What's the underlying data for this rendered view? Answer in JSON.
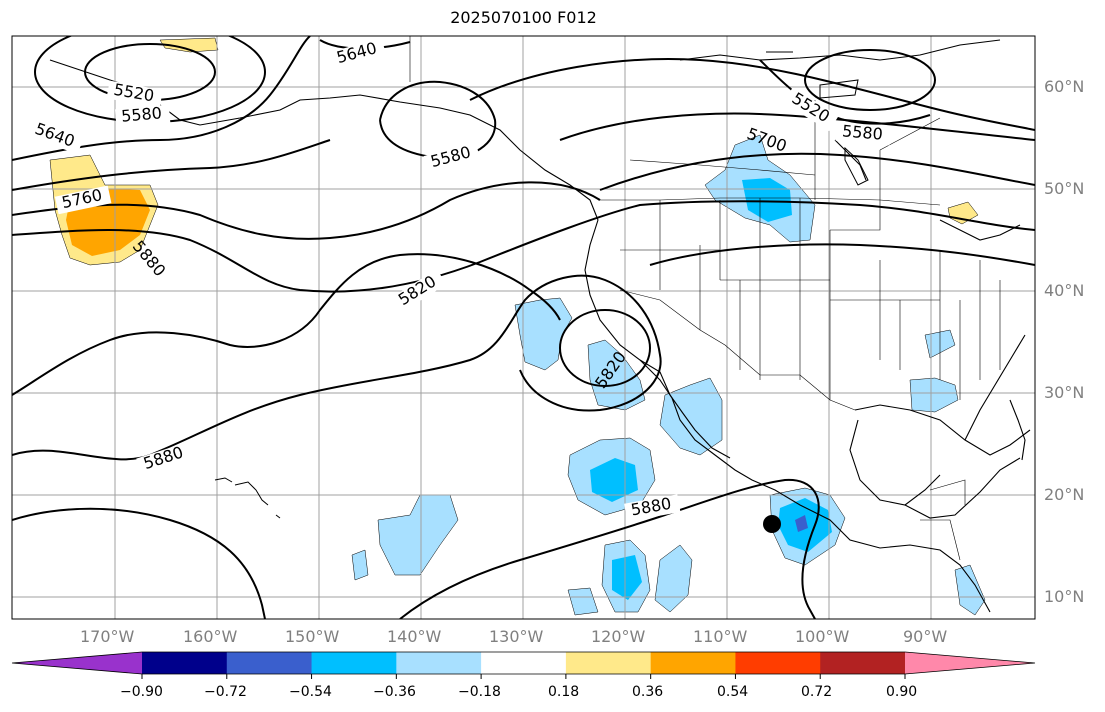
{
  "title": "2025070100 F012",
  "map": {
    "lon_ticks": [
      "170°W",
      "160°W",
      "150°W",
      "140°W",
      "130°W",
      "120°W",
      "110°W",
      "100°W",
      "90°W"
    ],
    "lat_ticks": [
      "60°N",
      "50°N",
      "40°N",
      "30°N",
      "20°N",
      "10°N"
    ],
    "contour_labels": [
      "5640",
      "5520",
      "5580",
      "5640",
      "5760",
      "5880",
      "5580",
      "5820",
      "5820",
      "5880",
      "5880",
      "5520",
      "5580",
      "5700"
    ],
    "marker": {
      "type": "filled-circle",
      "lon": "-105.3",
      "lat": "17.2"
    }
  },
  "colorbar": {
    "colors": [
      "#9932CC",
      "#00008B",
      "#3A5FCD",
      "#00BFFF",
      "#A8E0FF",
      "#FFFFFF",
      "#FFE98A",
      "#FFA500",
      "#FF3D00",
      "#B22222",
      "#FF88AA"
    ],
    "labels": [
      "−0.90",
      "−0.72",
      "−0.54",
      "−0.36",
      "−0.18",
      "0.18",
      "0.36",
      "0.54",
      "0.72",
      "0.90"
    ],
    "extend": "both"
  }
}
